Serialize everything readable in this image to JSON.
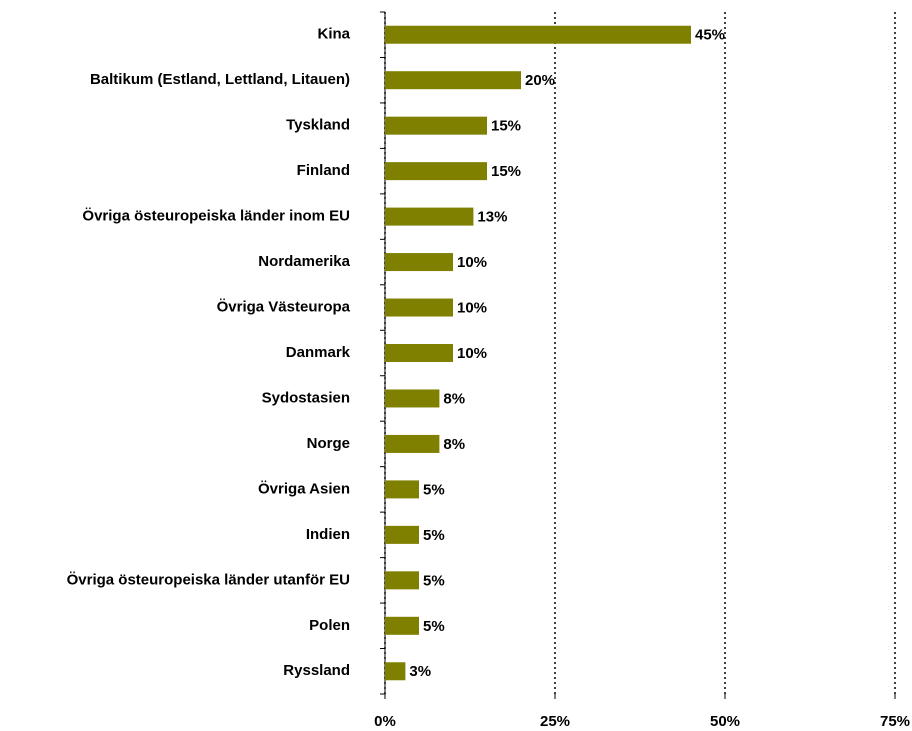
{
  "chart_data": {
    "type": "bar",
    "orientation": "horizontal",
    "categories": [
      "Kina",
      "Baltikum (Estland, Lettland, Litauen)",
      "Tyskland",
      "Finland",
      "Övriga östeuropeiska länder inom EU",
      "Nordamerika",
      "Övriga Västeuropa",
      "Danmark",
      "Sydostasien",
      "Norge",
      "Övriga Asien",
      "Indien",
      "Övriga östeuropeiska länder utanför EU",
      "Polen",
      "Ryssland"
    ],
    "values": [
      45,
      20,
      15,
      15,
      13,
      10,
      10,
      10,
      8,
      8,
      5,
      5,
      5,
      5,
      3
    ],
    "value_labels": [
      "45%",
      "20%",
      "15%",
      "15%",
      "13%",
      "10%",
      "10%",
      "10%",
      "8%",
      "8%",
      "5%",
      "5%",
      "5%",
      "5%",
      "3%"
    ],
    "color": "#808000",
    "xlim": [
      0,
      75
    ],
    "xticks": [
      {
        "value": 0,
        "label": "0%"
      },
      {
        "value": 25,
        "label": "25%"
      },
      {
        "value": 50,
        "label": "50%"
      },
      {
        "value": 75,
        "label": "75%"
      }
    ],
    "grid": true
  }
}
